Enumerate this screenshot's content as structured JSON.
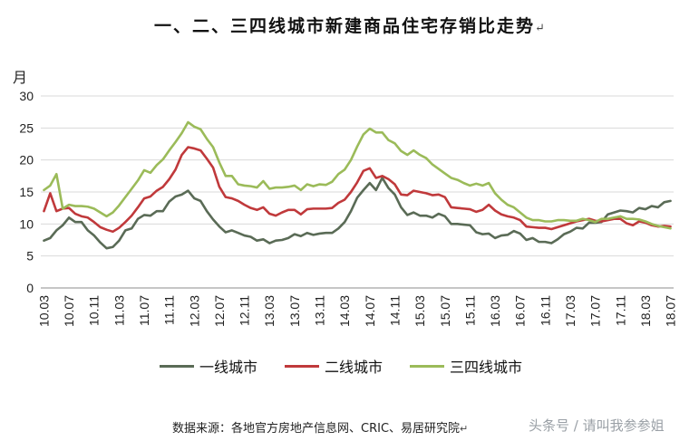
{
  "header": {
    "title": "一、二、三四线城市新建商品住宅存销比走势",
    "title_mark": "↵"
  },
  "footer": {
    "source": "数据来源：各地官方房地产信息网、CRIC、易居研究院",
    "source_mark": "↵",
    "watermark": "头条号 / 请叫我参参姐"
  },
  "chart_data": {
    "type": "line",
    "title": "一、二、三四线城市新建商品住宅存销比走势",
    "ylabel": "月",
    "xlabel": "",
    "ylim": [
      0,
      30
    ],
    "yticks": [
      0,
      5,
      10,
      15,
      20,
      25,
      30
    ],
    "grid": "horizontal",
    "legend_position": "bottom",
    "x_start": "2010-03",
    "x_end": "2018-07",
    "tick_labels": [
      "10.03",
      "10.07",
      "10.11",
      "11.03",
      "11.07",
      "11.11",
      "12.03",
      "12.07",
      "12.11",
      "13.03",
      "13.07",
      "13.11",
      "14.03",
      "14.07",
      "14.11",
      "15.03",
      "15.07",
      "15.11",
      "16.03",
      "16.07",
      "16.11",
      "17.03",
      "17.07",
      "17.11",
      "18.03",
      "18.07"
    ],
    "series": [
      {
        "name": "一线城市",
        "color": "#5a6b56",
        "values": [
          7.4,
          7.8,
          9.0,
          9.8,
          11.0,
          10.3,
          10.3,
          9.0,
          8.2,
          7.1,
          6.2,
          6.4,
          7.4,
          9.0,
          9.3,
          10.8,
          11.4,
          11.3,
          12.0,
          12.0,
          13.5,
          14.3,
          14.6,
          15.2,
          14.0,
          13.6,
          12.0,
          10.7,
          9.6,
          8.7,
          9.0,
          8.6,
          8.2,
          8.0,
          7.4,
          7.6,
          7.0,
          7.4,
          7.5,
          7.8,
          8.4,
          8.1,
          8.6,
          8.3,
          8.5,
          8.6,
          8.6,
          9.3,
          10.3,
          12.0,
          14.1,
          15.3,
          16.4,
          15.3,
          17.2,
          15.6,
          14.6,
          12.6,
          11.4,
          11.8,
          11.3,
          11.3,
          11.0,
          11.6,
          11.2,
          10.0,
          10.0,
          9.9,
          9.8,
          8.7,
          8.4,
          8.5,
          7.8,
          8.2,
          8.3,
          8.9,
          8.5,
          7.5,
          7.8,
          7.2,
          7.2,
          7.0,
          7.6,
          8.4,
          8.8,
          9.4,
          9.3,
          10.2,
          10.2,
          10.3,
          11.5,
          11.8,
          12.1,
          12.0,
          11.8,
          12.5,
          12.3,
          12.8,
          12.6,
          13.4,
          13.6
        ]
      },
      {
        "name": "二线城市",
        "color": "#c0393b",
        "values": [
          12.0,
          14.8,
          12.0,
          12.4,
          12.5,
          11.6,
          11.2,
          11.0,
          10.3,
          9.5,
          9.1,
          8.8,
          9.4,
          10.3,
          11.3,
          12.6,
          14.0,
          14.3,
          15.2,
          15.8,
          17.0,
          18.5,
          20.8,
          22.0,
          21.8,
          21.5,
          20.2,
          18.8,
          15.8,
          14.2,
          14.0,
          13.6,
          13.0,
          12.5,
          12.2,
          12.6,
          11.6,
          11.3,
          11.8,
          12.2,
          12.2,
          11.5,
          12.3,
          12.4,
          12.4,
          12.4,
          12.5,
          13.3,
          13.8,
          15.0,
          16.5,
          18.3,
          18.7,
          17.2,
          17.5,
          17.0,
          16.2,
          14.6,
          14.5,
          15.2,
          15.0,
          14.8,
          14.5,
          14.6,
          14.2,
          12.6,
          12.5,
          12.4,
          12.3,
          11.9,
          12.2,
          13.0,
          12.1,
          11.5,
          11.2,
          11.0,
          10.6,
          9.6,
          9.5,
          9.4,
          9.4,
          9.2,
          9.5,
          9.8,
          10.1,
          10.4,
          10.6,
          10.8,
          10.5,
          10.4,
          10.6,
          10.8,
          10.8,
          10.1,
          9.8,
          10.4,
          10.2,
          9.8,
          9.6,
          9.7,
          9.6
        ]
      },
      {
        "name": "三四线城市",
        "color": "#9bbb59",
        "values": [
          15.3,
          16.0,
          17.8,
          12.4,
          13.0,
          12.8,
          12.8,
          12.7,
          12.4,
          11.8,
          11.2,
          11.8,
          12.9,
          14.2,
          15.5,
          16.8,
          18.4,
          18.0,
          19.2,
          20.1,
          21.5,
          22.8,
          24.2,
          25.9,
          25.2,
          24.8,
          23.3,
          22.0,
          19.6,
          17.5,
          17.5,
          16.2,
          16.0,
          15.9,
          15.7,
          16.7,
          15.5,
          15.7,
          15.7,
          15.8,
          16.0,
          15.3,
          16.2,
          15.9,
          16.2,
          16.1,
          16.6,
          17.8,
          18.5,
          20.0,
          22.1,
          24.0,
          24.9,
          24.3,
          24.3,
          23.1,
          22.6,
          21.4,
          20.8,
          21.5,
          20.8,
          20.3,
          19.3,
          18.6,
          17.9,
          17.2,
          16.9,
          16.4,
          16.0,
          16.3,
          16.0,
          16.4,
          14.8,
          13.8,
          13.0,
          12.6,
          11.8,
          11.0,
          10.6,
          10.6,
          10.4,
          10.4,
          10.6,
          10.6,
          10.5,
          10.5,
          10.8,
          10.6,
          10.3,
          10.8,
          10.8,
          11.0,
          11.2,
          10.8,
          10.8,
          10.7,
          10.4,
          10.0,
          9.7,
          9.5,
          9.3
        ]
      }
    ]
  }
}
